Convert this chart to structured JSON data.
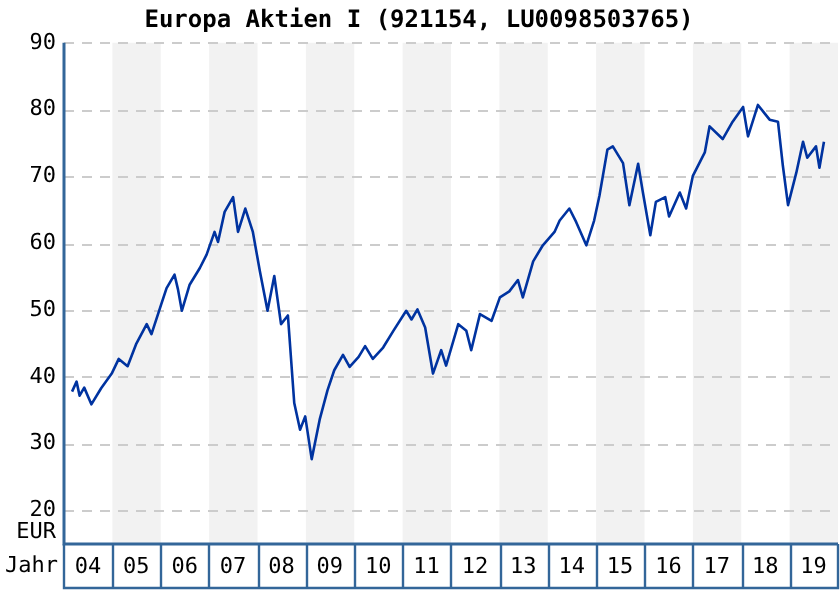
{
  "chart_data": {
    "type": "line",
    "title": "Europa Aktien I (921154, LU0098503765)",
    "xlabel": "Jahr",
    "ylabel": "EUR",
    "xlim": [
      "2004-01-01",
      "2020-01-01"
    ],
    "ylim": [
      15,
      90
    ],
    "yticks": [
      20,
      30,
      40,
      50,
      60,
      70,
      80,
      90
    ],
    "xticks": [
      {
        "value": "2004-07-01",
        "label": "04"
      },
      {
        "value": "2005-07-01",
        "label": "05"
      },
      {
        "value": "2006-07-01",
        "label": "06"
      },
      {
        "value": "2007-07-01",
        "label": "07"
      },
      {
        "value": "2008-07-01",
        "label": "08"
      },
      {
        "value": "2009-07-01",
        "label": "09"
      },
      {
        "value": "2010-07-01",
        "label": "10"
      },
      {
        "value": "2011-07-01",
        "label": "11"
      },
      {
        "value": "2012-07-01",
        "label": "12"
      },
      {
        "value": "2013-07-01",
        "label": "13"
      },
      {
        "value": "2014-07-01",
        "label": "14"
      },
      {
        "value": "2015-07-01",
        "label": "15"
      },
      {
        "value": "2016-07-01",
        "label": "16"
      },
      {
        "value": "2017-07-01",
        "label": "17"
      },
      {
        "value": "2018-07-01",
        "label": "18"
      },
      {
        "value": "2019-07-01",
        "label": "19"
      }
    ],
    "grid": "y",
    "legend": false,
    "marker": "none",
    "line_style": "solid",
    "bands": [
      {
        "axis": "x",
        "from": "2005-01-01",
        "to": "2006-01-01",
        "color": "#f2f2f2"
      },
      {
        "axis": "x",
        "from": "2007-01-01",
        "to": "2008-01-01",
        "color": "#f2f2f2"
      },
      {
        "axis": "x",
        "from": "2009-01-01",
        "to": "2010-01-01",
        "color": "#f2f2f2"
      },
      {
        "axis": "x",
        "from": "2011-01-01",
        "to": "2012-01-01",
        "color": "#f2f2f2"
      },
      {
        "axis": "x",
        "from": "2013-01-01",
        "to": "2014-01-01",
        "color": "#f2f2f2"
      },
      {
        "axis": "x",
        "from": "2015-01-01",
        "to": "2016-01-01",
        "color": "#f2f2f2"
      },
      {
        "axis": "x",
        "from": "2017-01-01",
        "to": "2018-01-01",
        "color": "#f2f2f2"
      },
      {
        "axis": "x",
        "from": "2019-01-01",
        "to": "2020-01-01",
        "color": "#f2f2f2"
      }
    ],
    "series": [
      {
        "color": "#0033a0",
        "x": [
          "2004-03-02",
          "2004-04-05",
          "2004-04-28",
          "2004-06-02",
          "2004-07-26",
          "2004-10-08",
          "2004-12-27",
          "2005-02-18",
          "2005-04-26",
          "2005-07-01",
          "2005-09-17",
          "2005-10-23",
          "2006-01-05",
          "2006-02-14",
          "2006-04-15",
          "2006-05-11",
          "2006-06-09",
          "2006-08-07",
          "2006-10-23",
          "2006-12-13",
          "2007-02-11",
          "2007-03-09",
          "2007-04-28",
          "2007-07-01",
          "2007-08-07",
          "2007-10-01",
          "2007-11-27",
          "2008-01-19",
          "2008-03-17",
          "2008-05-07",
          "2008-06-27",
          "2008-08-18",
          "2008-10-05",
          "2008-11-18",
          "2008-12-27",
          "2009-02-14",
          "2009-04-15",
          "2009-06-13",
          "2009-08-03",
          "2009-10-08",
          "2009-11-27",
          "2010-02-03",
          "2010-03-24",
          "2010-05-21",
          "2010-08-07",
          "2010-10-23",
          "2011-01-28",
          "2011-03-09",
          "2011-04-23",
          "2011-06-20",
          "2011-08-18",
          "2011-10-19",
          "2011-11-25",
          "2012-02-25",
          "2012-04-26",
          "2012-06-02",
          "2012-08-07",
          "2012-11-03",
          "2013-01-05",
          "2013-03-17",
          "2013-05-21",
          "2013-06-27",
          "2013-09-13",
          "2013-11-25",
          "2014-02-21",
          "2014-04-01",
          "2014-06-13",
          "2014-08-03",
          "2014-10-19",
          "2014-12-17",
          "2015-01-26",
          "2015-03-27",
          "2015-05-07",
          "2015-07-23",
          "2015-09-09",
          "2015-11-14",
          "2015-12-20",
          "2016-02-14",
          "2016-03-27",
          "2016-06-06",
          "2016-07-05",
          "2016-09-24",
          "2016-11-11",
          "2017-01-01",
          "2017-04-01",
          "2017-05-07",
          "2017-08-14",
          "2017-10-28",
          "2018-01-15",
          "2018-02-21",
          "2018-05-07",
          "2018-08-03",
          "2018-10-05",
          "2018-11-11",
          "2018-12-20",
          "2019-02-21",
          "2019-04-12",
          "2019-05-14",
          "2019-07-19",
          "2019-08-14",
          "2019-09-17"
        ],
        "values": [
          37.8,
          39.3,
          37.2,
          38.4,
          35.9,
          38.3,
          40.5,
          42.7,
          41.6,
          45,
          47.9,
          46.4,
          50.9,
          53.3,
          55.3,
          53.1,
          49.9,
          53.8,
          56.3,
          58.3,
          61.7,
          60.2,
          64.7,
          66.9,
          61.7,
          65.2,
          61.7,
          55.8,
          49.9,
          55.1,
          47.9,
          49.2,
          36.1,
          32.1,
          34.1,
          27.7,
          33.6,
          38,
          41,
          43.3,
          41.5,
          43,
          44.6,
          42.7,
          44.4,
          46.9,
          49.9,
          48.6,
          50.1,
          47.4,
          40.5,
          44,
          41.7,
          47.9,
          46.9,
          44,
          49.4,
          48.4,
          51.9,
          52.8,
          54.5,
          51.9,
          57.3,
          59.7,
          61.7,
          63.4,
          65.2,
          63.2,
          59.7,
          63.4,
          67.1,
          74,
          74.5,
          72,
          65.7,
          71.9,
          67.6,
          61.2,
          66.2,
          66.9,
          64,
          67.6,
          65.2,
          70.1,
          73.6,
          77.5,
          75.6,
          78.2,
          80.4,
          76,
          80.7,
          78.5,
          78.2,
          71.6,
          65.7,
          70.6,
          75.2,
          72.8,
          74.5,
          71.3,
          75.2
        ]
      }
    ]
  }
}
